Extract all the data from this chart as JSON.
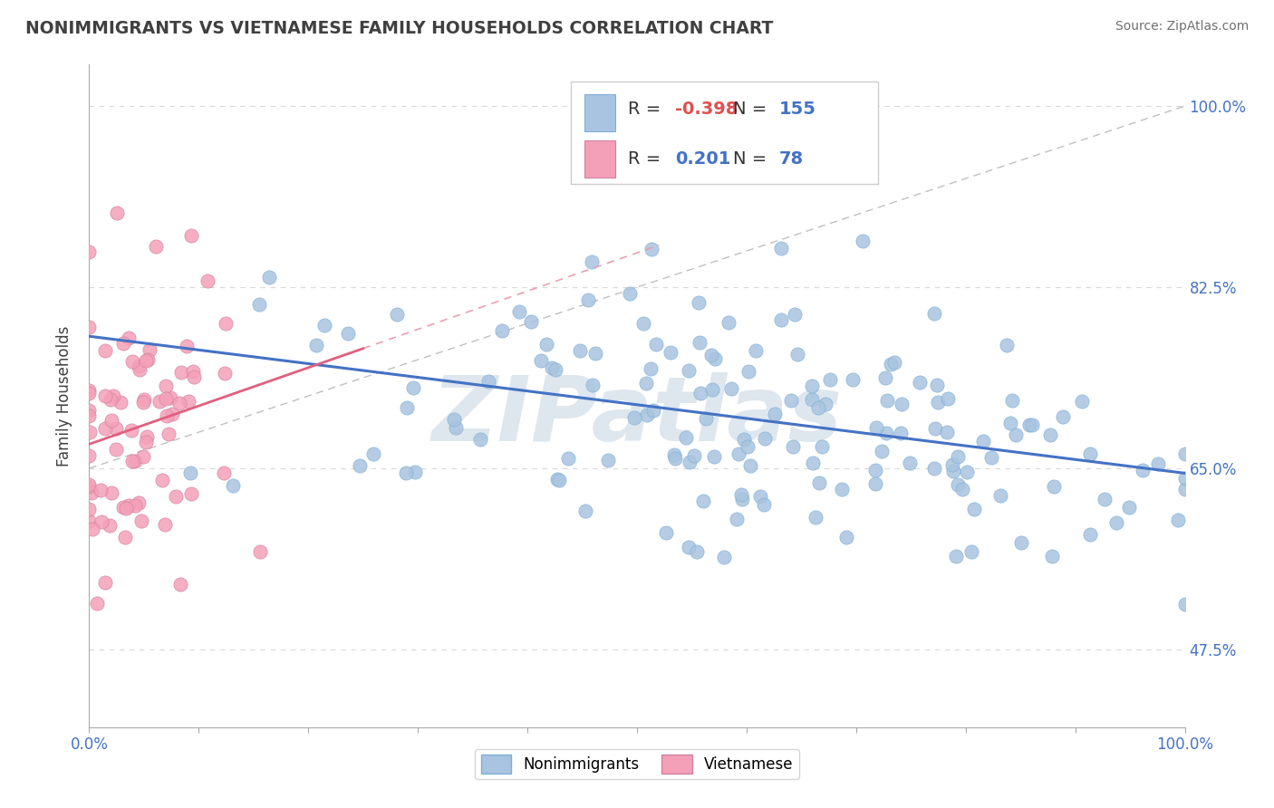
{
  "title": "NONIMMIGRANTS VS VIETNAMESE FAMILY HOUSEHOLDS CORRELATION CHART",
  "source": "Source: ZipAtlas.com",
  "ylabel": "Family Households",
  "ytick_labels": [
    "100.0%",
    "82.5%",
    "65.0%",
    "47.5%"
  ],
  "ytick_values": [
    1.0,
    0.825,
    0.65,
    0.475
  ],
  "xlim": [
    0.0,
    1.0
  ],
  "ylim": [
    0.4,
    1.04
  ],
  "legend_blue_label": "Nonimmigrants",
  "legend_pink_label": "Vietnamese",
  "R_blue": -0.398,
  "N_blue": 155,
  "R_pink": 0.201,
  "N_pink": 78,
  "blue_scatter_color": "#a8c4e0",
  "blue_scatter_edge": "#7fafd4",
  "pink_scatter_color": "#f4a0b8",
  "pink_scatter_edge": "#d080a0",
  "blue_line_color": "#4472c4",
  "pink_line_color": "#e06080",
  "pink_dash_color": "#e8a0b0",
  "ref_line_color": "#c0c0c0",
  "watermark_color": "#d0dce8",
  "watermark_text": "ZIPatlas",
  "grid_color": "#d8d8d8",
  "title_color": "#404040",
  "source_color": "#707070",
  "axis_label_color": "#404040",
  "tick_label_color": "#4472c4",
  "xtick_label_color": "#4472c4",
  "legend_border_color": "#cccccc"
}
